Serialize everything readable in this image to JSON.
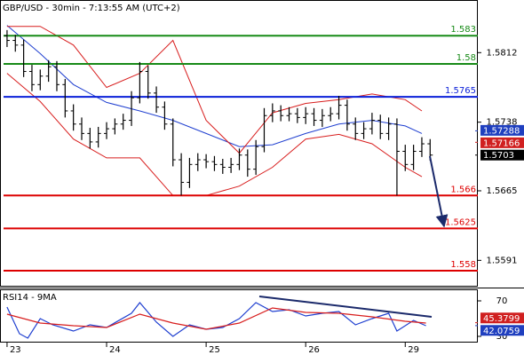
{
  "chart_data": [
    {
      "type": "ohlc",
      "title": "GBP/USD - 30min - 7:13:55 AM (UTC+2)",
      "color": "#000000",
      "xlim": [
        -1.7,
        113.5
      ],
      "ylim": [
        1.5563,
        1.5868
      ],
      "yticks": [
        1.5812,
        1.5738,
        1.5665,
        1.5591
      ],
      "x": [
        0,
        2,
        4,
        6,
        8,
        10,
        12,
        14,
        16,
        18,
        20,
        22,
        24,
        26,
        28,
        30,
        32,
        34,
        36,
        38,
        40,
        42,
        44,
        46,
        48,
        50,
        52,
        54,
        56,
        58,
        60,
        62,
        64,
        66,
        68,
        70,
        72,
        74,
        76,
        78,
        80,
        82,
        84,
        86,
        88,
        90,
        92,
        94,
        96,
        98,
        100,
        102
      ],
      "open": [
        1.583,
        1.5825,
        1.582,
        1.5792,
        1.5778,
        1.5787,
        1.5797,
        1.5778,
        1.575,
        1.5736,
        1.5726,
        1.5717,
        1.5726,
        1.5731,
        1.5736,
        1.574,
        1.5764,
        1.5792,
        1.5769,
        1.5754,
        1.5736,
        1.5698,
        1.5674,
        1.5693,
        1.5698,
        1.5696,
        1.5693,
        1.569,
        1.5693,
        1.5703,
        1.5688,
        1.5712,
        1.5745,
        1.575,
        1.5745,
        1.5747,
        1.5743,
        1.5747,
        1.574,
        1.5745,
        1.5747,
        1.5756,
        1.5736,
        1.5726,
        1.5731,
        1.574,
        1.5726,
        1.5736,
        1.5707,
        1.5693,
        1.5707,
        1.5715
      ],
      "high": [
        1.5836,
        1.5831,
        1.5826,
        1.5799,
        1.5794,
        1.5804,
        1.5803,
        1.5784,
        1.5757,
        1.5743,
        1.5732,
        1.5733,
        1.5738,
        1.5742,
        1.5747,
        1.5771,
        1.5802,
        1.5798,
        1.5776,
        1.576,
        1.5742,
        1.5705,
        1.57,
        1.5705,
        1.5704,
        1.5702,
        1.5699,
        1.57,
        1.571,
        1.5709,
        1.5719,
        1.5753,
        1.5758,
        1.5756,
        1.5754,
        1.5753,
        1.5754,
        1.5753,
        1.5752,
        1.5754,
        1.5766,
        1.5762,
        1.5743,
        1.5738,
        1.5748,
        1.5746,
        1.5743,
        1.5742,
        1.5714,
        1.5714,
        1.5722,
        1.572
      ],
      "low": [
        1.5818,
        1.5813,
        1.5786,
        1.5771,
        1.5772,
        1.5781,
        1.5771,
        1.5743,
        1.5729,
        1.5719,
        1.571,
        1.5711,
        1.572,
        1.5725,
        1.573,
        1.5734,
        1.5758,
        1.5763,
        1.5748,
        1.573,
        1.5691,
        1.566,
        1.5668,
        1.5686,
        1.5689,
        1.5686,
        1.5683,
        1.5684,
        1.5687,
        1.568,
        1.5682,
        1.5706,
        1.5738,
        1.5739,
        1.5739,
        1.5737,
        1.5736,
        1.5734,
        1.5733,
        1.5739,
        1.5741,
        1.5729,
        1.5719,
        1.572,
        1.5725,
        1.572,
        1.5719,
        1.566,
        1.5686,
        1.5687,
        1.5701,
        1.5697
      ],
      "close": [
        1.5825,
        1.582,
        1.5792,
        1.5778,
        1.5787,
        1.5797,
        1.5778,
        1.575,
        1.5736,
        1.5726,
        1.5717,
        1.5726,
        1.5731,
        1.5736,
        1.574,
        1.5764,
        1.5792,
        1.5769,
        1.5754,
        1.5736,
        1.5698,
        1.5674,
        1.5693,
        1.5698,
        1.5696,
        1.5693,
        1.569,
        1.5693,
        1.5703,
        1.5688,
        1.5712,
        1.5745,
        1.575,
        1.5745,
        1.5747,
        1.5743,
        1.5747,
        1.574,
        1.5745,
        1.5747,
        1.5756,
        1.5736,
        1.5726,
        1.5731,
        1.574,
        1.5726,
        1.5736,
        1.5707,
        1.5693,
        1.5707,
        1.5715,
        1.5703
      ],
      "overlays": [
        {
          "color": "#1f3fd0",
          "x": [
            0,
            8,
            16,
            24,
            32,
            40,
            48,
            56,
            64,
            72,
            80,
            88,
            96,
            100
          ],
          "values": [
            1.5841,
            1.5811,
            1.5778,
            1.5759,
            1.575,
            1.574,
            1.5726,
            1.5712,
            1.5714,
            1.5726,
            1.5736,
            1.574,
            1.5734,
            1.5726
          ]
        },
        {
          "color": "#d81e1e",
          "x": [
            0,
            8,
            16,
            24,
            32,
            40,
            48,
            56,
            64,
            72,
            80,
            88,
            96,
            100
          ],
          "values": [
            1.584,
            1.584,
            1.582,
            1.5775,
            1.579,
            1.5825,
            1.574,
            1.5705,
            1.5748,
            1.5758,
            1.5762,
            1.5768,
            1.5762,
            1.575
          ]
        },
        {
          "color": "#d81e1e",
          "x": [
            0,
            8,
            16,
            24,
            32,
            40,
            48,
            56,
            64,
            72,
            80,
            88,
            96,
            100
          ],
          "values": [
            1.579,
            1.576,
            1.572,
            1.57,
            1.57,
            1.566,
            1.566,
            1.567,
            1.569,
            1.572,
            1.5725,
            1.5715,
            1.569,
            1.568
          ]
        }
      ],
      "levels": [
        {
          "value": 1.583,
          "color": "#178a17"
        },
        {
          "value": 1.58,
          "color": "#178a17"
        },
        {
          "value": 1.5765,
          "color": "#0a1fd8"
        },
        {
          "value": 1.566,
          "color": "#dd0000"
        },
        {
          "value": 1.5625,
          "color": "#dd0000"
        },
        {
          "value": 1.558,
          "color": "#dd0000"
        }
      ],
      "markers": [
        {
          "value": 1.57288,
          "color": "#1f3fbf"
        },
        {
          "value": 1.57166,
          "color": "#d02020"
        },
        {
          "value": 1.5703,
          "color": "#000000"
        }
      ]
    },
    {
      "type": "line",
      "title": "RSI14 - 9MA",
      "xlim": [
        -1.7,
        113.5
      ],
      "ylim": [
        23,
        83
      ],
      "yticks": [
        30,
        70
      ],
      "xticks": [
        {
          "value": 0,
          "label": "23"
        },
        {
          "value": 24,
          "label": "24"
        },
        {
          "value": 48,
          "label": "25"
        },
        {
          "value": 72,
          "label": "26"
        },
        {
          "value": 96,
          "label": "29"
        }
      ],
      "series": [
        {
          "color": "#1f3fd0",
          "x": [
            0,
            3,
            5,
            8,
            11,
            16,
            20,
            24,
            30,
            32,
            36,
            40,
            44,
            48,
            52,
            56,
            60,
            64,
            68,
            72,
            76,
            80,
            84,
            88,
            92,
            94,
            98,
            101
          ],
          "values": [
            63,
            33,
            28,
            50,
            43,
            36,
            43,
            40,
            56,
            68,
            46,
            30,
            43,
            38,
            40,
            50,
            68,
            58,
            60,
            53,
            56,
            58,
            43,
            50,
            56,
            36,
            48,
            42
          ]
        },
        {
          "color": "#d81e1e",
          "x": [
            0,
            8,
            16,
            24,
            32,
            40,
            48,
            56,
            64,
            72,
            80,
            88,
            96,
            101
          ],
          "values": [
            55,
            45,
            42,
            40,
            55,
            45,
            38,
            45,
            62,
            57,
            56,
            52,
            47,
            45
          ]
        }
      ],
      "markers": [
        {
          "value": 45.3799,
          "color": "#d02020"
        },
        {
          "value": 42.0759,
          "color": "#1f3fbf"
        }
      ]
    }
  ]
}
